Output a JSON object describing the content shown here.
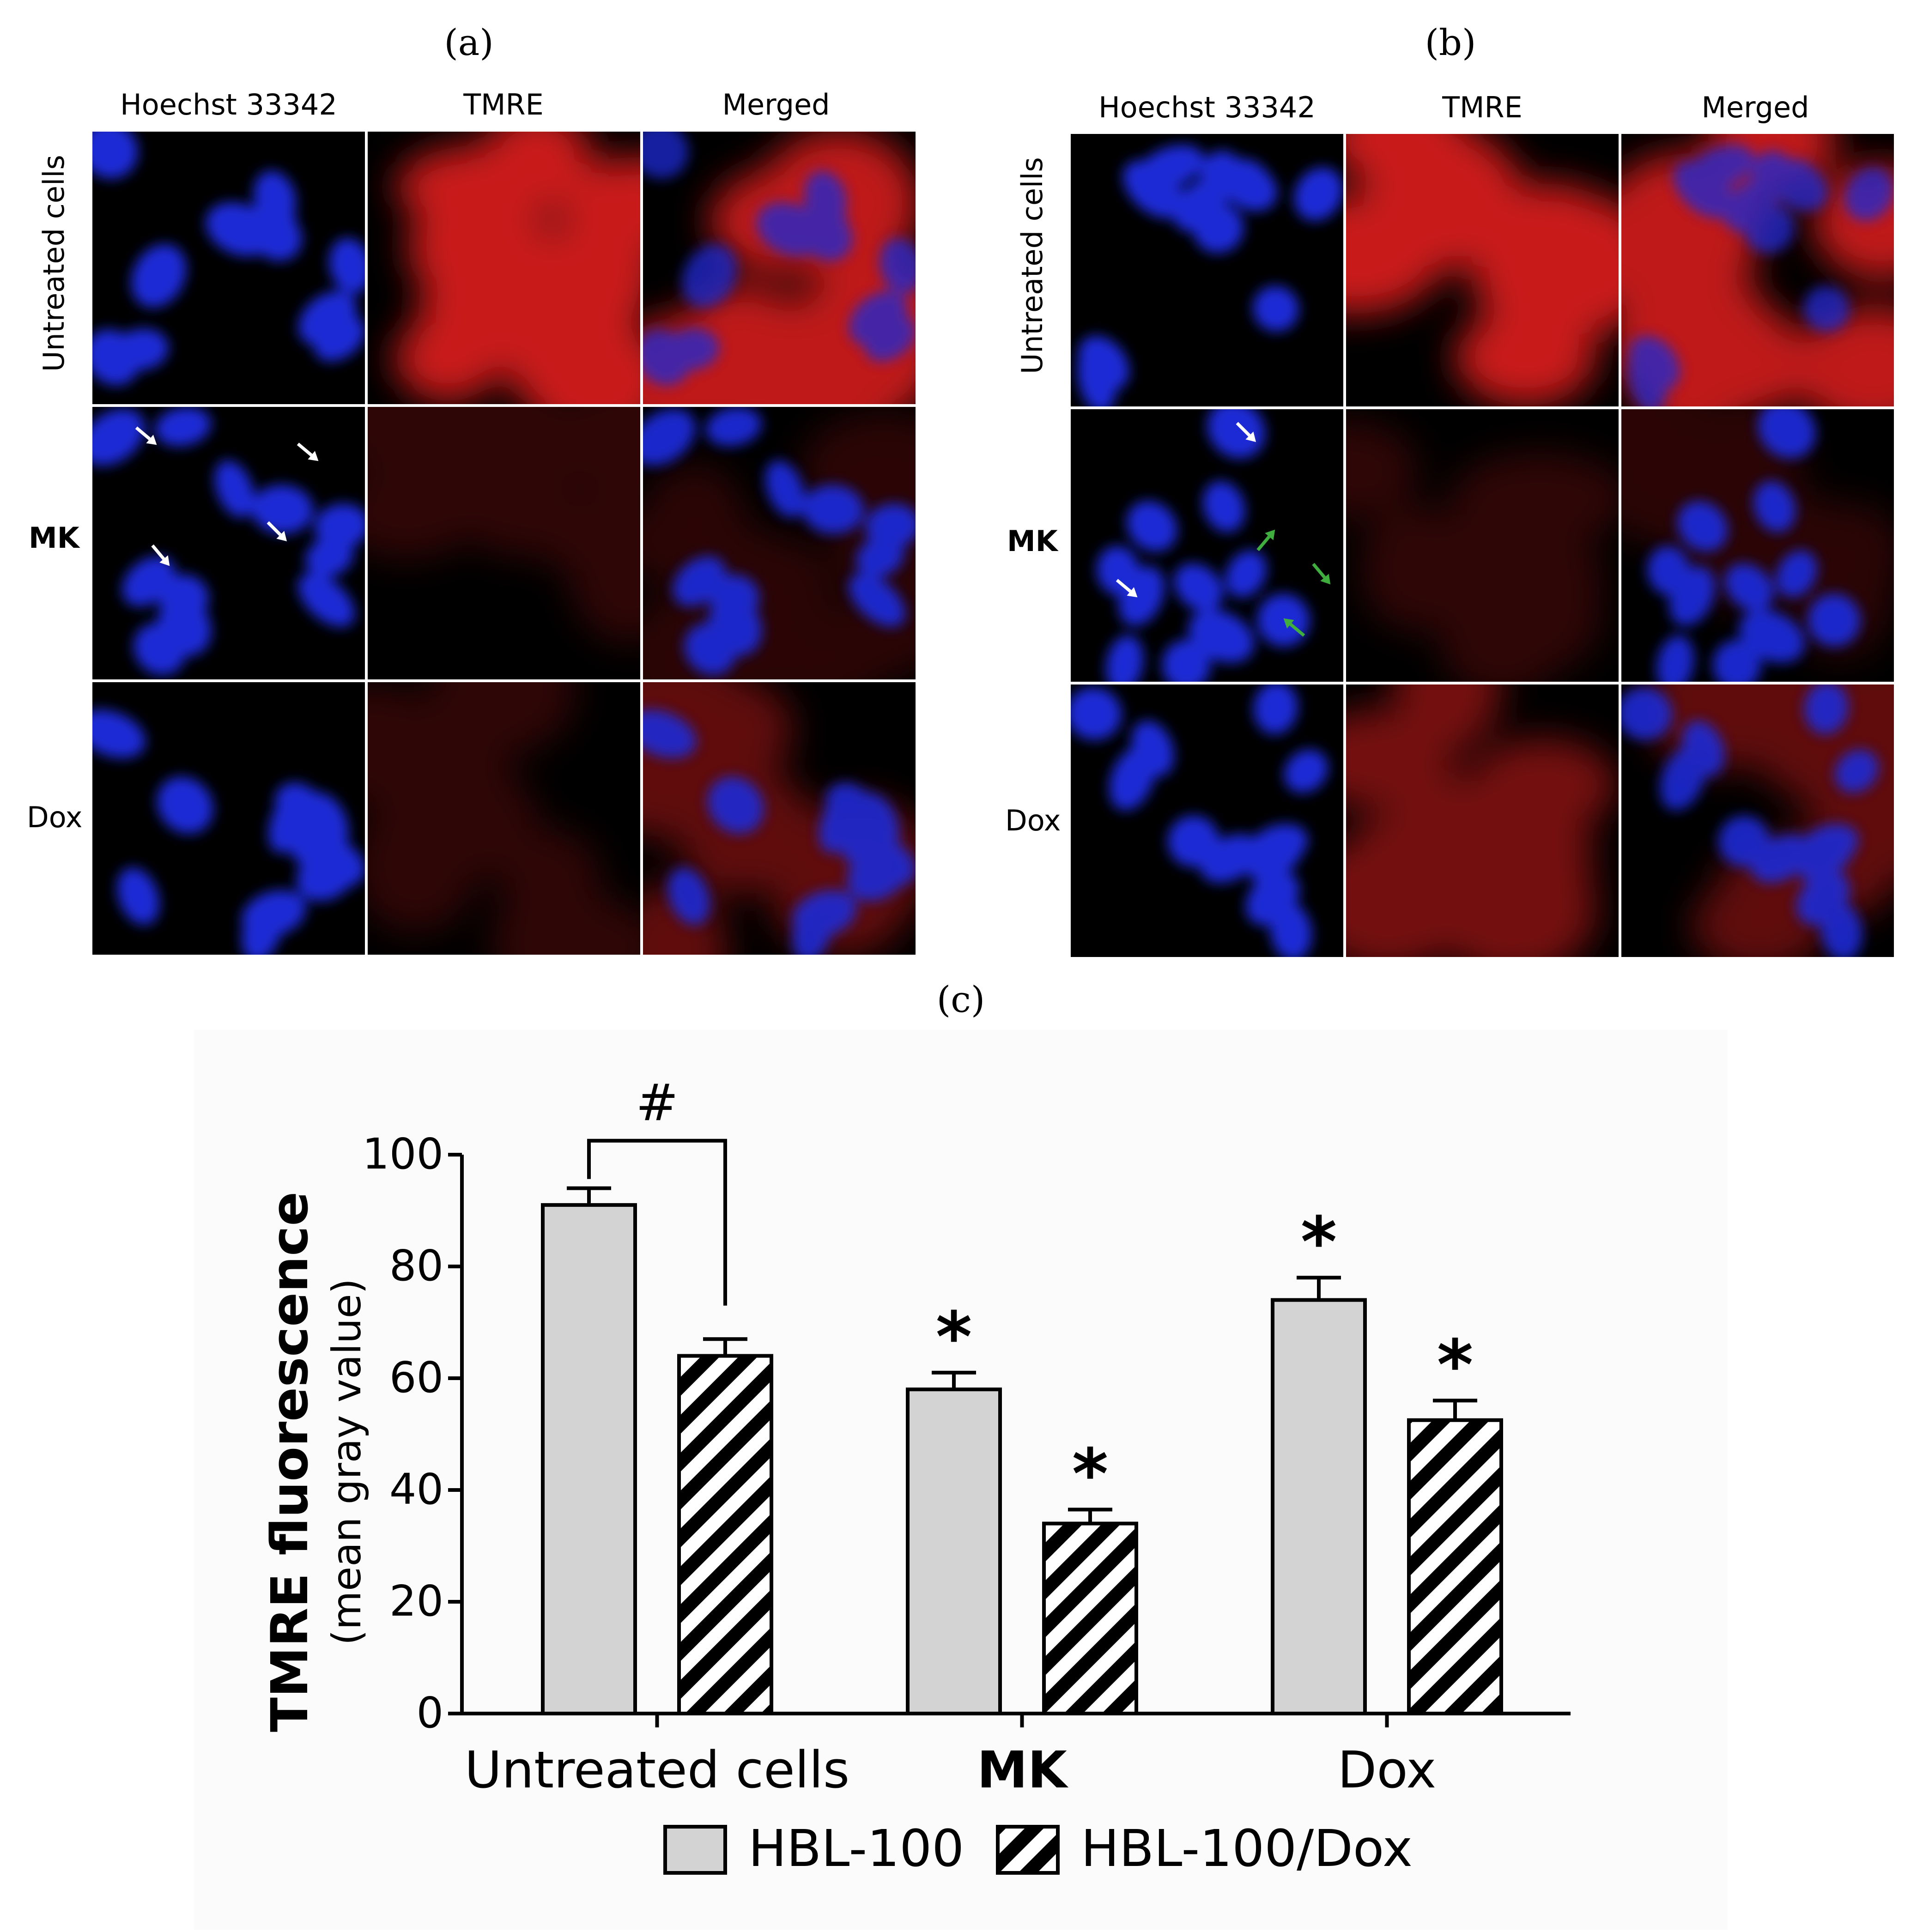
{
  "figure": {
    "panel_a": {
      "letter": "(a)",
      "columns": [
        "Hoechst 33342",
        "TMRE",
        "Merged"
      ],
      "rows": [
        "Untreated cells",
        "MK",
        "Dox"
      ]
    },
    "panel_b": {
      "letter": "(b)",
      "columns": [
        "Hoechst 33342",
        "TMRE",
        "Merged"
      ],
      "rows": [
        "Untreated cells",
        "MK",
        "Dox"
      ]
    },
    "panel_c": {
      "letter": "(c)"
    },
    "colors": {
      "nucleus_blue": "#1d2bd6",
      "tmre_red": "#d41a1a",
      "white_arrow": "#ffffff",
      "green_arrow": "#3fae3f",
      "bar_fill_hbl100": "#d3d3d3",
      "hatch": "#000000"
    }
  },
  "chart_data": {
    "type": "bar",
    "categories": [
      "Untreated cells",
      "MK",
      "Dox"
    ],
    "series": [
      {
        "name": "HBL-100",
        "values": [
          91,
          58,
          74
        ],
        "errors": [
          3,
          3,
          4
        ],
        "pattern": "solid-gray"
      },
      {
        "name": "HBL-100/Dox",
        "values": [
          64,
          34,
          52.5
        ],
        "errors": [
          3,
          2.5,
          3.5
        ],
        "pattern": "diagonal-hatch"
      }
    ],
    "ylabel": "TMRE fluorescence",
    "ylabel_sub": "(mean gray value)",
    "ylim": [
      0,
      100
    ],
    "yticks": [
      "0",
      "20",
      "40",
      "60",
      "80",
      "100"
    ],
    "annotations": {
      "asterisk": "*",
      "asterisk_on": [
        [
          1,
          0
        ],
        [
          1,
          1
        ],
        [
          2,
          0
        ],
        [
          2,
          1
        ]
      ],
      "bracket_symbol": "#"
    },
    "bold_categories": [
      "MK"
    ],
    "legend": {
      "placement": "bottom"
    }
  }
}
